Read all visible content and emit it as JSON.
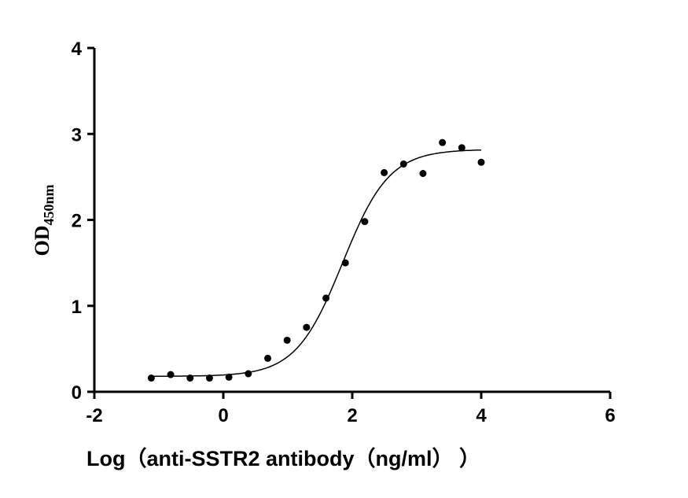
{
  "chart_data": {
    "type": "scatter",
    "xlabel": "Log（anti-SSTR2 antibody（ng/ml）  ）",
    "ylabel": {
      "main": "OD",
      "subscript": "450nm"
    },
    "xlim": [
      -2,
      6
    ],
    "ylim": [
      0,
      4
    ],
    "xticks": [
      -2,
      0,
      2,
      4,
      6
    ],
    "yticks": [
      0,
      1,
      2,
      3,
      4
    ],
    "grid": false,
    "point_color": "#000000",
    "points": {
      "x": [
        -1.117,
        -0.816,
        -0.515,
        -0.214,
        0.087,
        0.388,
        0.689,
        0.99,
        1.291,
        1.592,
        1.893,
        2.194,
        2.495,
        2.796,
        3.097,
        3.398,
        3.699,
        4.0
      ],
      "y": [
        0.16,
        0.2,
        0.16,
        0.16,
        0.17,
        0.21,
        0.39,
        0.6,
        0.75,
        1.09,
        1.5,
        1.98,
        2.55,
        2.65,
        2.54,
        2.9,
        2.84,
        2.67
      ]
    },
    "fit": {
      "type": "4PL",
      "bottom": 0.18,
      "top": 2.82,
      "logEC50": 1.85,
      "hill": 1.2,
      "x_range": [
        -1.117,
        4.0
      ]
    }
  }
}
